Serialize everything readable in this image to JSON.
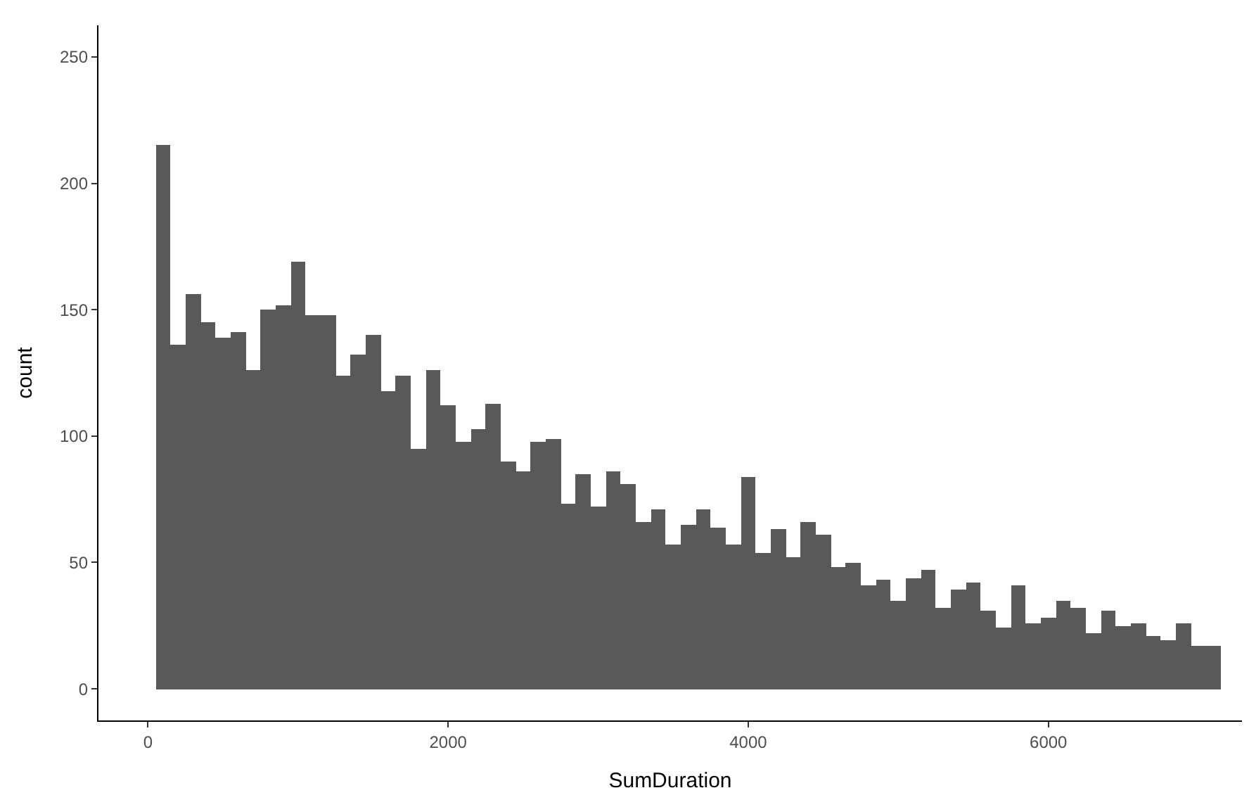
{
  "chart_data": {
    "type": "histogram",
    "xlabel": "SumDuration",
    "ylabel": "count",
    "bins": [
      50,
      150,
      250,
      350,
      450,
      550,
      650,
      750,
      850,
      950,
      1050,
      1150,
      1250,
      1350,
      1450,
      1550,
      1650,
      1750,
      1850,
      1950,
      2050,
      2150,
      2250,
      2350,
      2450,
      2550,
      2650,
      2750,
      2850,
      2950,
      3050,
      3150,
      3250,
      3350,
      3450,
      3550,
      3650,
      3750,
      3850,
      3950,
      4050,
      4150,
      4250,
      4350,
      4450,
      4550,
      4650,
      4750,
      4850,
      4950,
      5050,
      5150,
      5250,
      5350,
      5450,
      5550,
      5650,
      5750,
      5850,
      5950,
      6050,
      6150,
      6250,
      6350,
      6450,
      6550,
      6650,
      6750,
      6850,
      6950,
      7050,
      7150
    ],
    "values": [
      215,
      136,
      156,
      145,
      139,
      141,
      126,
      150,
      152,
      169,
      148,
      148,
      124,
      132,
      140,
      118,
      124,
      95,
      126,
      112,
      98,
      103,
      113,
      90,
      86,
      98,
      99,
      73,
      85,
      72,
      86,
      81,
      66,
      71,
      57,
      65,
      71,
      64,
      57,
      84,
      54,
      63,
      52,
      66,
      61,
      48,
      50,
      41,
      43,
      35,
      44,
      47,
      32,
      39,
      42,
      31,
      24,
      41,
      26,
      28,
      35,
      32,
      22,
      31,
      25,
      26,
      21,
      19,
      26,
      17,
      17
    ],
    "color": "#595959",
    "xlim": [
      -330,
      7290
    ],
    "xticks": [
      0,
      2000,
      4000,
      6000
    ],
    "ylim": [
      -12.5,
      262.5
    ],
    "yticks": [
      0,
      50,
      100,
      150,
      200,
      250
    ],
    "grid": false
  }
}
